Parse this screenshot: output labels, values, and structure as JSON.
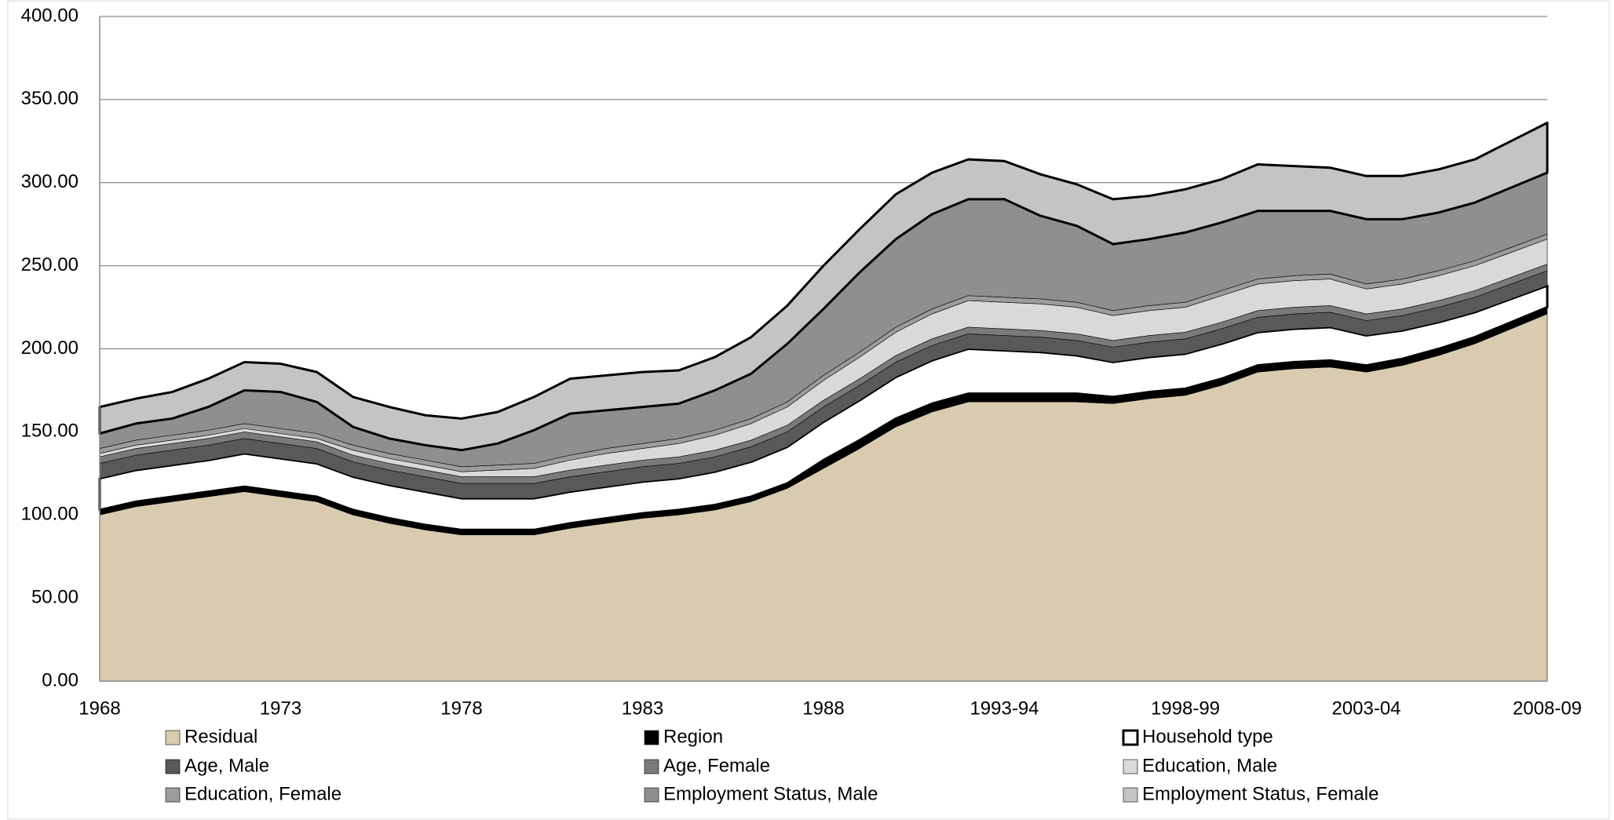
{
  "chart_data": {
    "type": "stacked_area",
    "categories": [
      "1968",
      null,
      null,
      null,
      null,
      "1973",
      null,
      null,
      null,
      null,
      "1978",
      null,
      null,
      null,
      null,
      "1983",
      null,
      null,
      null,
      null,
      "1988",
      null,
      null,
      null,
      null,
      "1993-94",
      null,
      null,
      null,
      null,
      "1998-99",
      null,
      null,
      null,
      null,
      "2003-04",
      null,
      null,
      null,
      null,
      "2008-09"
    ],
    "series": [
      {
        "name": "Residual",
        "color": "#d8cbb0",
        "values": [
          100,
          105,
          108,
          111,
          114,
          111,
          108,
          100,
          95,
          91,
          88,
          88,
          88,
          92,
          95,
          98,
          100,
          103,
          108,
          116,
          128,
          140,
          153,
          162,
          168,
          168,
          168,
          168,
          167,
          170,
          172,
          178,
          186,
          188,
          189,
          186,
          190,
          196,
          203,
          212,
          221
        ]
      },
      {
        "name": "Region",
        "color": "#000000",
        "values": [
          3,
          3,
          3,
          3,
          3,
          3,
          3,
          3,
          3,
          3,
          3,
          3,
          3,
          3,
          3,
          3,
          3,
          3,
          3,
          3,
          5,
          5,
          5,
          5,
          5,
          5,
          5,
          5,
          4,
          4,
          4,
          4,
          4,
          4,
          4,
          4,
          4,
          4,
          4,
          4,
          4
        ]
      },
      {
        "name": "Household type",
        "color": "#ffffff",
        "values": [
          19,
          19,
          19,
          19,
          20,
          20,
          20,
          20,
          20,
          20,
          19,
          19,
          19,
          19,
          19,
          19,
          19,
          20,
          21,
          22,
          23,
          24,
          25,
          26,
          27,
          26,
          25,
          23,
          21,
          21,
          21,
          21,
          20,
          20,
          20,
          18,
          17,
          16,
          15,
          14,
          13
        ]
      },
      {
        "name": "Age, Male",
        "color": "#595959",
        "values": [
          9,
          9,
          9,
          9,
          9,
          9,
          9,
          9,
          9,
          9,
          9,
          9,
          9,
          9,
          9,
          9,
          9,
          9,
          9,
          9,
          9,
          9,
          9,
          9,
          9,
          9,
          9,
          9,
          9,
          9,
          9,
          9,
          9,
          9,
          9,
          9,
          9,
          9,
          9,
          9,
          9
        ]
      },
      {
        "name": "Age, Female",
        "color": "#7a7a7a",
        "values": [
          4,
          4,
          4,
          4,
          4,
          4,
          4,
          4,
          4,
          4,
          4,
          4,
          4,
          4,
          4,
          4,
          4,
          4,
          4,
          4,
          4,
          4,
          4,
          4,
          4,
          4,
          4,
          4,
          4,
          4,
          4,
          4,
          4,
          4,
          4,
          4,
          4,
          4,
          4,
          4,
          4
        ]
      },
      {
        "name": "Education, Male",
        "color": "#d9d9d9",
        "values": [
          2,
          2,
          2,
          2,
          2,
          2,
          2,
          3,
          3,
          3,
          3,
          4,
          5,
          6,
          7,
          7,
          8,
          9,
          10,
          11,
          12,
          13,
          14,
          15,
          16,
          16,
          16,
          16,
          15,
          15,
          15,
          16,
          16,
          16,
          16,
          15,
          15,
          15,
          15,
          15,
          15
        ]
      },
      {
        "name": "Education, Female",
        "color": "#9c9c9c",
        "values": [
          3,
          3,
          3,
          3,
          3,
          3,
          3,
          3,
          3,
          3,
          3,
          3,
          3,
          3,
          3,
          3,
          3,
          3,
          3,
          3,
          3,
          3,
          3,
          3,
          3,
          3,
          3,
          3,
          3,
          3,
          3,
          3,
          3,
          3,
          3,
          3,
          3,
          3,
          3,
          3,
          3
        ]
      },
      {
        "name": "Employment Status, Male",
        "color": "#8f8f8f",
        "values": [
          9,
          10,
          10,
          14,
          20,
          22,
          19,
          11,
          9,
          9,
          10,
          13,
          20,
          25,
          23,
          22,
          21,
          24,
          27,
          35,
          40,
          48,
          53,
          57,
          58,
          59,
          50,
          46,
          40,
          40,
          42,
          41,
          41,
          39,
          38,
          39,
          36,
          35,
          35,
          36,
          37
        ]
      },
      {
        "name": "Employment Status, Female",
        "color": "#c4c4c4",
        "values": [
          16,
          15,
          16,
          17,
          17,
          17,
          18,
          18,
          19,
          18,
          19,
          19,
          20,
          21,
          21,
          21,
          20,
          20,
          22,
          23,
          26,
          26,
          27,
          25,
          24,
          23,
          25,
          25,
          27,
          26,
          26,
          26,
          28,
          27,
          26,
          26,
          26,
          26,
          26,
          28,
          30
        ]
      }
    ],
    "ylim": [
      0,
      400
    ],
    "yticks": [
      {
        "value": 0,
        "label": "0.00"
      },
      {
        "value": 50,
        "label": "50.00"
      },
      {
        "value": 100,
        "label": "100.00"
      },
      {
        "value": 150,
        "label": "150.00"
      },
      {
        "value": 200,
        "label": "200.00"
      },
      {
        "value": 250,
        "label": "250.00"
      },
      {
        "value": 300,
        "label": "300.00"
      },
      {
        "value": 350,
        "label": "350.00"
      },
      {
        "value": 400,
        "label": "400.00"
      }
    ],
    "grid": true,
    "legend": "bottom"
  }
}
